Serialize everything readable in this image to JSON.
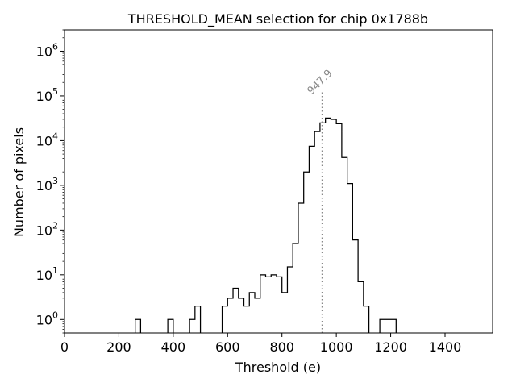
{
  "chart_data": {
    "type": "histogram",
    "title": "THRESHOLD_MEAN selection for chip 0x1788b",
    "xlabel": "Threshold (e)",
    "ylabel": "Number of pixels",
    "xlim": [
      0,
      1575
    ],
    "ylim": [
      0.5,
      3000000
    ],
    "yscale": "log",
    "grid": false,
    "x_ticks": [
      0,
      200,
      400,
      600,
      800,
      1000,
      1200,
      1400
    ],
    "x_tick_labels": [
      "0",
      "200",
      "400",
      "600",
      "800",
      "1000",
      "1200",
      "1400"
    ],
    "y_ticks": [
      1,
      10,
      100,
      1000,
      10000,
      100000,
      1000000
    ],
    "y_tick_labels": [
      {
        "base": "10",
        "exp": "0"
      },
      {
        "base": "10",
        "exp": "1"
      },
      {
        "base": "10",
        "exp": "2"
      },
      {
        "base": "10",
        "exp": "3"
      },
      {
        "base": "10",
        "exp": "4"
      },
      {
        "base": "10",
        "exp": "5"
      },
      {
        "base": "10",
        "exp": "6"
      }
    ],
    "bin_edges": [
      0,
      20,
      40,
      60,
      80,
      100,
      120,
      140,
      160,
      180,
      200,
      220,
      240,
      260,
      280,
      300,
      320,
      340,
      360,
      380,
      400,
      420,
      440,
      460,
      480,
      500,
      520,
      540,
      560,
      580,
      600,
      620,
      640,
      660,
      680,
      700,
      720,
      740,
      760,
      780,
      800,
      820,
      840,
      860,
      880,
      900,
      920,
      940,
      960,
      980,
      1000,
      1020,
      1040,
      1060,
      1080,
      1100,
      1120,
      1140,
      1160,
      1180,
      1200,
      1220,
      1240,
      1260,
      1280,
      1300,
      1320,
      1340,
      1360,
      1380,
      1400,
      1420,
      1440,
      1460,
      1480,
      1500
    ],
    "counts": [
      0,
      0,
      0,
      0,
      0,
      0,
      0,
      0,
      0,
      0,
      0,
      0,
      0,
      1,
      0,
      0,
      0,
      0,
      0,
      1,
      0,
      0,
      0,
      1,
      2,
      0,
      0,
      0,
      0,
      2,
      3,
      5,
      3,
      2,
      4,
      3,
      10,
      9,
      10,
      9,
      4,
      15,
      50,
      400,
      2000,
      7500,
      16000,
      25000,
      32000,
      30000,
      24000,
      4200,
      1100,
      60,
      7,
      2,
      0,
      0,
      1,
      1,
      1,
      0,
      0,
      0,
      0,
      0,
      0,
      0,
      0,
      0,
      0,
      0,
      0,
      0,
      0
    ],
    "marker": {
      "x": 947.9,
      "label": "947.9",
      "top": 130000,
      "style": "dotted"
    }
  }
}
